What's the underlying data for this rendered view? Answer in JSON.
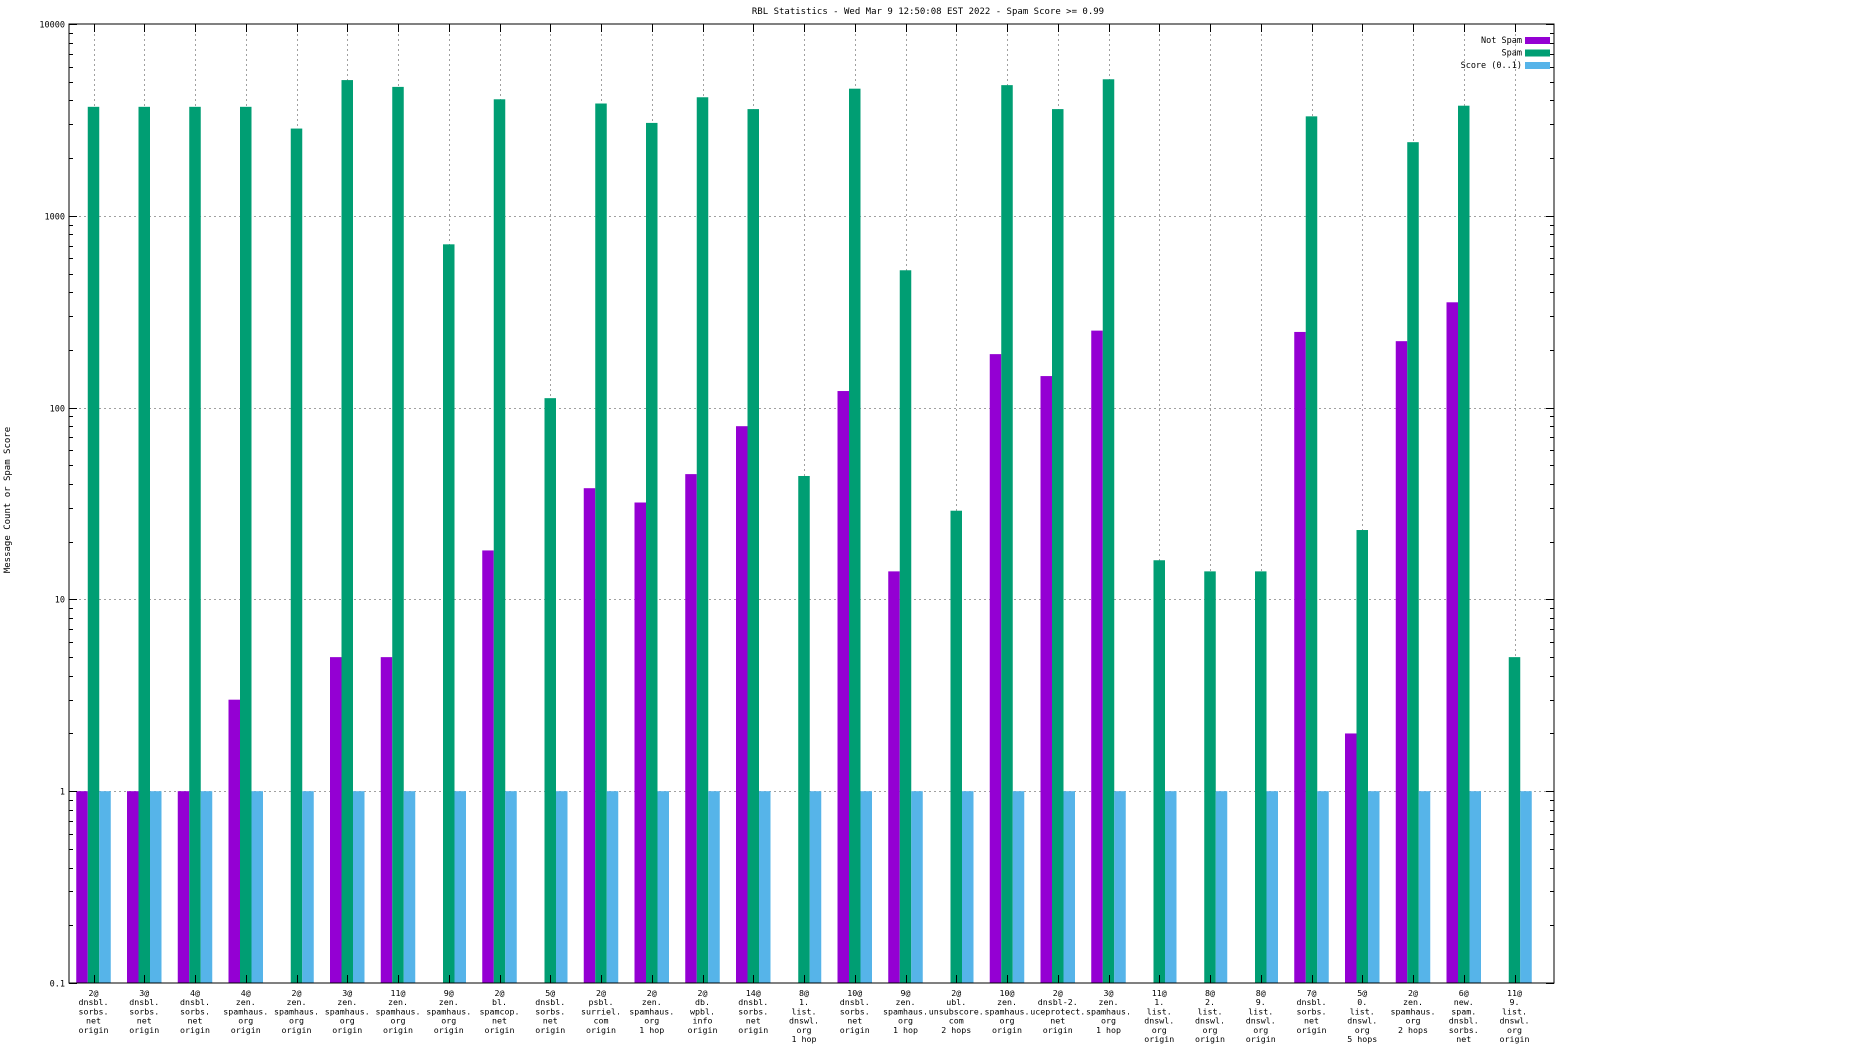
{
  "chart_data": {
    "type": "bar",
    "title": "RBL Statistics - Wed Mar  9 12:50:08 EST 2022 - Spam Score >= 0.99",
    "xlabel": "",
    "ylabel": "Message Count or Spam Score",
    "yscale": "log",
    "ylim": [
      0.1,
      10000
    ],
    "yticks": [
      {
        "value": 0.1,
        "label": "0.1"
      },
      {
        "value": 1,
        "label": "1"
      },
      {
        "value": 10,
        "label": "10"
      },
      {
        "value": 100,
        "label": "100"
      },
      {
        "value": 1000,
        "label": "1000"
      },
      {
        "value": 10000,
        "label": "10000"
      }
    ],
    "grid": true,
    "legend_position": "top-right",
    "categories": [
      [
        "2@",
        "dnsbl.",
        "sorbs.",
        "net",
        "origin"
      ],
      [
        "3@",
        "dnsbl.",
        "sorbs.",
        "net",
        "origin"
      ],
      [
        "4@",
        "dnsbl.",
        "sorbs.",
        "net",
        "origin"
      ],
      [
        "4@",
        "zen.",
        "spamhaus.",
        "org",
        "origin"
      ],
      [
        "2@",
        "zen.",
        "spamhaus.",
        "org",
        "origin"
      ],
      [
        "3@",
        "zen.",
        "spamhaus.",
        "org",
        "origin"
      ],
      [
        "11@",
        "zen.",
        "spamhaus.",
        "org",
        "origin"
      ],
      [
        "9@",
        "zen.",
        "spamhaus.",
        "org",
        "origin"
      ],
      [
        "2@",
        "bl.",
        "spamcop.",
        "net",
        "origin"
      ],
      [
        "5@",
        "dnsbl.",
        "sorbs.",
        "net",
        "origin"
      ],
      [
        "2@",
        "psbl.",
        "surriel.",
        "com",
        "origin"
      ],
      [
        "2@",
        "zen.",
        "spamhaus.",
        "org",
        "1 hop"
      ],
      [
        "2@",
        "db.",
        "wpbl.",
        "info",
        "origin"
      ],
      [
        "14@",
        "dnsbl.",
        "sorbs.",
        "net",
        "origin"
      ],
      [
        "8@",
        "1.",
        "list.",
        "dnswl.",
        "org",
        "1 hop"
      ],
      [
        "10@",
        "dnsbl.",
        "sorbs.",
        "net",
        "origin"
      ],
      [
        "9@",
        "zen.",
        "spamhaus.",
        "org",
        "1 hop"
      ],
      [
        "2@",
        "ubl.",
        "unsubscore.",
        "com",
        "2 hops"
      ],
      [
        "10@",
        "zen.",
        "spamhaus.",
        "org",
        "origin"
      ],
      [
        "2@",
        "dnsbl-2.",
        "uceprotect.",
        "net",
        "origin"
      ],
      [
        "3@",
        "zen.",
        "spamhaus.",
        "org",
        "1 hop"
      ],
      [
        "11@",
        "1.",
        "list.",
        "dnswl.",
        "org",
        "origin"
      ],
      [
        "8@",
        "2.",
        "list.",
        "dnswl.",
        "org",
        "origin"
      ],
      [
        "8@",
        "9.",
        "list.",
        "dnswl.",
        "org",
        "origin"
      ],
      [
        "7@",
        "dnsbl.",
        "sorbs.",
        "net",
        "origin"
      ],
      [
        "5@",
        "0.",
        "list.",
        "dnswl.",
        "org",
        "5 hops"
      ],
      [
        "2@",
        "zen.",
        "spamhaus.",
        "org",
        "2 hops"
      ],
      [
        "6@",
        "new.",
        "spam.",
        "dnsbl.",
        "sorbs.",
        "net",
        "origin"
      ],
      [
        "11@",
        "9.",
        "list.",
        "dnswl.",
        "org",
        "origin"
      ]
    ],
    "series": [
      {
        "name": "Not Spam",
        "color": "#9400d3",
        "values": [
          1,
          1,
          1,
          3,
          null,
          5,
          5,
          null,
          18,
          null,
          38,
          32,
          45,
          80,
          null,
          122,
          14,
          null,
          190,
          146,
          252,
          null,
          null,
          null,
          248,
          2,
          222,
          354,
          null
        ]
      },
      {
        "name": "Spam",
        "color": "#009e73",
        "values": [
          3700,
          3700,
          3700,
          3700,
          2850,
          5100,
          4700,
          710,
          4050,
          112,
          3850,
          3050,
          4150,
          3600,
          44,
          4600,
          520,
          29,
          4800,
          3600,
          5150,
          16,
          14,
          14,
          3300,
          23,
          2420,
          3750,
          5
        ]
      },
      {
        "name": "Score (0..1)",
        "color": "#56b4e9",
        "values": [
          1,
          1,
          1,
          1,
          1,
          1,
          1,
          1,
          1,
          1,
          1,
          1,
          1,
          1,
          1,
          1,
          1,
          1,
          1,
          1,
          1,
          1,
          1,
          1,
          1,
          1,
          1,
          1,
          1
        ]
      }
    ]
  }
}
